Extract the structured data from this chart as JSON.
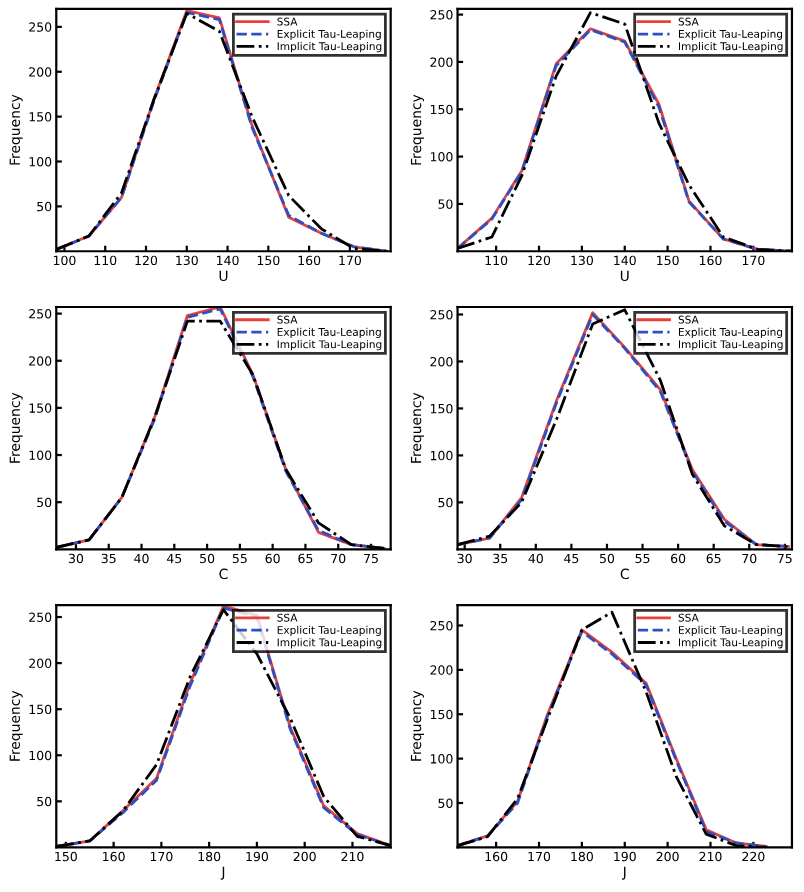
{
  "chart_data": [
    {
      "type": "line",
      "xlabel": "U",
      "ylabel": "Frequency",
      "xlim": [
        98,
        180
      ],
      "xticks": [
        100,
        110,
        120,
        130,
        140,
        150,
        160,
        170
      ],
      "ylim": [
        0,
        270
      ],
      "yticks": [
        50,
        100,
        150,
        200,
        250
      ],
      "legend": "top right",
      "grid": false,
      "x": [
        98,
        106,
        114,
        122,
        130,
        138,
        146,
        155,
        163,
        171,
        179
      ],
      "series": [
        {
          "name": "SSA",
          "color": "#e8403a",
          "line_style": "solid",
          "values": [
            2,
            17,
            60,
            170,
            268,
            260,
            140,
            38,
            20,
            5,
            0
          ]
        },
        {
          "name": "Explicit Tau-Leaping",
          "color": "#2c4fc4",
          "line_style": "dashed",
          "values": [
            2,
            17,
            60,
            168,
            266,
            258,
            138,
            40,
            20,
            5,
            0
          ]
        },
        {
          "name": "Implicit Tau-Leaping",
          "color": "#000000",
          "line_style": "dashdot",
          "values": [
            2,
            17,
            65,
            170,
            265,
            245,
            150,
            62,
            25,
            3,
            0
          ]
        }
      ]
    },
    {
      "type": "line",
      "xlabel": "U",
      "ylabel": "Frequency",
      "xlim": [
        101,
        179
      ],
      "xticks": [
        110,
        120,
        130,
        140,
        150,
        160,
        170
      ],
      "ylim": [
        0,
        256
      ],
      "yticks": [
        50,
        100,
        150,
        200,
        250
      ],
      "legend": "top right",
      "grid": false,
      "x": [
        101,
        109,
        116,
        124,
        132,
        140,
        148,
        155,
        163,
        171,
        179
      ],
      "series": [
        {
          "name": "SSA",
          "color": "#e8403a",
          "line_style": "solid",
          "values": [
            3,
            35,
            85,
            198,
            235,
            222,
            155,
            53,
            13,
            2,
            0
          ]
        },
        {
          "name": "Explicit Tau-Leaping",
          "color": "#2c4fc4",
          "line_style": "dashed",
          "values": [
            3,
            34,
            84,
            196,
            234,
            221,
            152,
            52,
            13,
            2,
            0
          ]
        },
        {
          "name": "Implicit Tau-Leaping",
          "color": "#000000",
          "line_style": "dashdot",
          "values": [
            3,
            15,
            80,
            185,
            252,
            240,
            135,
            70,
            15,
            2,
            0
          ]
        }
      ]
    },
    {
      "type": "line",
      "xlabel": "C",
      "ylabel": "Frequency",
      "xlim": [
        27,
        78
      ],
      "xticks": [
        30,
        35,
        40,
        45,
        50,
        55,
        60,
        65,
        70,
        75
      ],
      "ylim": [
        0,
        257
      ],
      "yticks": [
        50,
        100,
        150,
        200,
        250
      ],
      "legend": "top right",
      "grid": false,
      "x": [
        27,
        32,
        37,
        42,
        47,
        52,
        57,
        62,
        67,
        72,
        77
      ],
      "series": [
        {
          "name": "SSA",
          "color": "#e8403a",
          "line_style": "solid",
          "values": [
            2,
            10,
            55,
            140,
            248,
            257,
            185,
            85,
            18,
            5,
            1
          ]
        },
        {
          "name": "Explicit Tau-Leaping",
          "color": "#2c4fc4",
          "line_style": "dashed",
          "values": [
            2,
            10,
            55,
            138,
            246,
            255,
            183,
            83,
            20,
            5,
            1
          ]
        },
        {
          "name": "Implicit Tau-Leaping",
          "color": "#000000",
          "line_style": "dashdot",
          "values": [
            2,
            10,
            55,
            140,
            242,
            242,
            185,
            85,
            28,
            5,
            1
          ]
        }
      ]
    },
    {
      "type": "line",
      "xlabel": "C",
      "ylabel": "Frequency",
      "xlim": [
        29,
        76
      ],
      "xticks": [
        30,
        35,
        40,
        45,
        50,
        55,
        60,
        65,
        70,
        75
      ],
      "ylim": [
        0,
        258
      ],
      "yticks": [
        50,
        100,
        150,
        200,
        250
      ],
      "legend": "top right",
      "grid": false,
      "x": [
        29,
        33.5,
        38,
        43,
        48,
        52.5,
        57.5,
        62,
        66.5,
        71,
        75.5
      ],
      "series": [
        {
          "name": "SSA",
          "color": "#e8403a",
          "line_style": "solid",
          "values": [
            5,
            12,
            55,
            160,
            252,
            215,
            170,
            85,
            32,
            5,
            3
          ]
        },
        {
          "name": "Explicit Tau-Leaping",
          "color": "#2c4fc4",
          "line_style": "dashed",
          "values": [
            5,
            12,
            53,
            158,
            250,
            214,
            168,
            83,
            30,
            5,
            3
          ]
        },
        {
          "name": "Implicit Tau-Leaping",
          "color": "#000000",
          "line_style": "dashdot",
          "values": [
            5,
            14,
            50,
            140,
            240,
            255,
            180,
            80,
            25,
            5,
            3
          ]
        }
      ]
    },
    {
      "type": "line",
      "xlabel": "J",
      "ylabel": "Frequency",
      "xlim": [
        148,
        218
      ],
      "xticks": [
        150,
        160,
        170,
        180,
        190,
        200,
        210
      ],
      "ylim": [
        0,
        263
      ],
      "yticks": [
        50,
        100,
        150,
        200,
        250
      ],
      "legend": "top right",
      "grid": false,
      "x": [
        148,
        155,
        162,
        169,
        176,
        183,
        190,
        197,
        204,
        211,
        218
      ],
      "series": [
        {
          "name": "SSA",
          "color": "#e8403a",
          "line_style": "solid",
          "values": [
            1,
            7,
            40,
            75,
            178,
            262,
            252,
            130,
            45,
            15,
            2
          ]
        },
        {
          "name": "Explicit Tau-Leaping",
          "color": "#2c4fc4",
          "line_style": "dashed",
          "values": [
            1,
            7,
            38,
            73,
            175,
            260,
            250,
            128,
            43,
            14,
            2
          ]
        },
        {
          "name": "Implicit Tau-Leaping",
          "color": "#000000",
          "line_style": "dashdot",
          "values": [
            1,
            7,
            40,
            90,
            185,
            258,
            210,
            140,
            55,
            12,
            2
          ]
        }
      ]
    },
    {
      "type": "line",
      "xlabel": "J",
      "ylabel": "Frequency",
      "xlim": [
        151,
        229
      ],
      "xticks": [
        160,
        170,
        180,
        190,
        200,
        210,
        220
      ],
      "ylim": [
        0,
        273
      ],
      "yticks": [
        50,
        100,
        150,
        200,
        250
      ],
      "legend": "top right",
      "grid": false,
      "x": [
        151,
        158,
        165,
        172,
        180,
        187,
        195,
        202,
        209,
        216,
        223
      ],
      "series": [
        {
          "name": "SSA",
          "color": "#e8403a",
          "line_style": "solid",
          "values": [
            2,
            13,
            52,
            150,
            245,
            220,
            185,
            100,
            20,
            5,
            1
          ]
        },
        {
          "name": "Explicit Tau-Leaping",
          "color": "#2c4fc4",
          "line_style": "dashed",
          "values": [
            2,
            13,
            50,
            148,
            243,
            218,
            183,
            98,
            18,
            5,
            1
          ]
        },
        {
          "name": "Implicit Tau-Leaping",
          "color": "#000000",
          "line_style": "dashdot",
          "values": [
            2,
            12,
            55,
            145,
            245,
            265,
            175,
            80,
            15,
            2,
            0
          ]
        }
      ]
    }
  ]
}
